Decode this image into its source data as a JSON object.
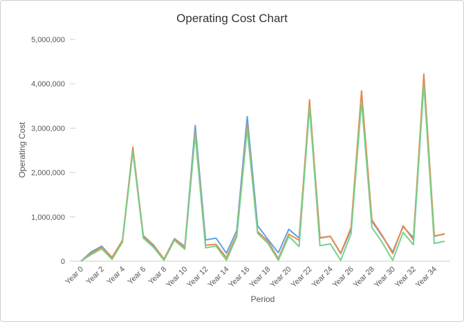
{
  "chart_data": {
    "type": "line",
    "title": "Operating Cost Chart",
    "xlabel": "Period",
    "ylabel": "Operating Cost",
    "ylim": [
      0,
      5000000
    ],
    "yticks": [
      "0",
      "1,000,000",
      "2,000,000",
      "3,000,000",
      "4,000,000",
      "5,000,000"
    ],
    "categories": [
      "Year 0",
      "Year 1",
      "Year 2",
      "Year 3",
      "Year 4",
      "Year 5",
      "Year 6",
      "Year 7",
      "Year 8",
      "Year 9",
      "Year 10",
      "Year 11",
      "Year 12",
      "Year 13",
      "Year 14",
      "Year 15",
      "Year 16",
      "Year 17",
      "Year 18",
      "Year 19",
      "Year 20",
      "Year 21",
      "Year 22",
      "Year 23",
      "Year 24",
      "Year 25",
      "Year 26",
      "Year 27",
      "Year 28",
      "Year 29",
      "Year 30",
      "Year 31",
      "Year 32",
      "Year 33",
      "Year 34",
      "Year 35"
    ],
    "xtick_labels": [
      "Year 0",
      "Year 2",
      "Year 4",
      "Year 6",
      "Year 8",
      "Year 10",
      "Year 12",
      "Year 14",
      "Year 16",
      "Year 18",
      "Year 20",
      "Year 22",
      "Year 24",
      "Year 26",
      "Year 28",
      "Year 30",
      "Year 32",
      "Year 34"
    ],
    "grid": false,
    "legend": "none",
    "series": [
      {
        "color": "#5aa2e8",
        "values": [
          0,
          210000,
          340000,
          80000,
          470000,
          2520000,
          580000,
          360000,
          50000,
          510000,
          330000,
          3060000,
          480000,
          520000,
          180000,
          690000,
          3260000,
          800000,
          490000,
          190000,
          720000,
          520000,
          3530000,
          530000,
          560000,
          170000,
          720000,
          3740000,
          900000,
          560000,
          210000,
          780000,
          530000,
          4070000,
          560000,
          620000
        ]
      },
      {
        "color": "#e8894a",
        "values": [
          0,
          180000,
          320000,
          90000,
          470000,
          2570000,
          560000,
          340000,
          50000,
          500000,
          310000,
          2930000,
          360000,
          380000,
          80000,
          600000,
          3080000,
          670000,
          450000,
          60000,
          610000,
          470000,
          3640000,
          520000,
          560000,
          180000,
          760000,
          3840000,
          930000,
          580000,
          170000,
          800000,
          480000,
          4220000,
          570000,
          610000
        ]
      },
      {
        "color": "#77d08c",
        "values": [
          0,
          150000,
          280000,
          40000,
          430000,
          2470000,
          520000,
          310000,
          20000,
          470000,
          270000,
          2850000,
          300000,
          340000,
          20000,
          550000,
          2980000,
          630000,
          400000,
          20000,
          560000,
          330000,
          3480000,
          350000,
          390000,
          20000,
          620000,
          3600000,
          760000,
          420000,
          20000,
          650000,
          370000,
          4000000,
          400000,
          450000
        ]
      }
    ]
  }
}
